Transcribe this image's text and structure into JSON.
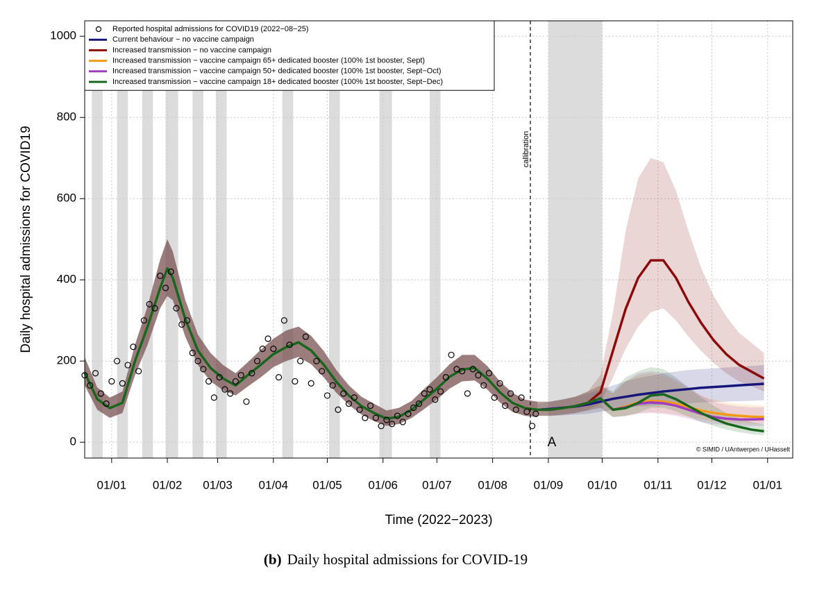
{
  "chart_data": {
    "type": "line",
    "y_label": "Daily hospital admissions for COVID19",
    "x_label": "Time (2022−2023)",
    "caption_label": "(b)",
    "caption": "Daily hospital admissions for COVID-19",
    "annotation": "A",
    "credit": "© SIMID / UAntwerpen / UHasselt",
    "grid": true,
    "legend_position": "top-left",
    "xlim": [
      "2021-12-17",
      "2023-01-15"
    ],
    "xticks": [
      {
        "value": "2022-01-01",
        "label": "01/01"
      },
      {
        "value": "2022-02-01",
        "label": "01/02"
      },
      {
        "value": "2022-03-01",
        "label": "01/03"
      },
      {
        "value": "2022-04-01",
        "label": "01/04"
      },
      {
        "value": "2022-05-01",
        "label": "01/05"
      },
      {
        "value": "2022-06-01",
        "label": "01/06"
      },
      {
        "value": "2022-07-01",
        "label": "01/07"
      },
      {
        "value": "2022-08-01",
        "label": "01/08"
      },
      {
        "value": "2022-09-01",
        "label": "01/09"
      },
      {
        "value": "2022-10-01",
        "label": "01/10"
      },
      {
        "value": "2022-11-01",
        "label": "01/11"
      },
      {
        "value": "2022-12-01",
        "label": "01/12"
      },
      {
        "value": "2023-01-01",
        "label": "01/01"
      }
    ],
    "ylim": [
      -39,
      1038
    ],
    "yticks": [
      0,
      200,
      400,
      600,
      800,
      1000
    ],
    "shade_color": "#dcdcdc",
    "shaded_periods": [
      {
        "start": "2021-12-21",
        "end": "2021-12-27"
      },
      {
        "start": "2022-01-04",
        "end": "2022-01-10"
      },
      {
        "start": "2022-01-18",
        "end": "2022-01-24"
      },
      {
        "start": "2022-01-31",
        "end": "2022-02-07"
      },
      {
        "start": "2022-02-15",
        "end": "2022-02-21"
      },
      {
        "start": "2022-02-28",
        "end": "2022-03-06"
      },
      {
        "start": "2022-04-06",
        "end": "2022-04-12"
      },
      {
        "start": "2022-05-02",
        "end": "2022-05-08"
      },
      {
        "start": "2022-05-30",
        "end": "2022-06-06"
      },
      {
        "start": "2022-06-27",
        "end": "2022-07-03"
      },
      {
        "start": "2022-09-01",
        "end": "2022-10-01"
      }
    ],
    "calibration": {
      "date": "2022-08-22",
      "label": "callibration"
    },
    "observations": {
      "name": "Reported hospital admissions for COVID19 (2022−08−25)",
      "color": "#000000",
      "x": [
        "2021-12-17",
        "2021-12-20",
        "2021-12-23",
        "2021-12-26",
        "2021-12-29",
        "2022-01-01",
        "2022-01-04",
        "2022-01-07",
        "2022-01-10",
        "2022-01-13",
        "2022-01-16",
        "2022-01-19",
        "2022-01-22",
        "2022-01-25",
        "2022-01-28",
        "2022-01-31",
        "2022-02-03",
        "2022-02-06",
        "2022-02-09",
        "2022-02-12",
        "2022-02-15",
        "2022-02-18",
        "2022-02-21",
        "2022-02-24",
        "2022-02-27",
        "2022-03-02",
        "2022-03-05",
        "2022-03-08",
        "2022-03-11",
        "2022-03-14",
        "2022-03-17",
        "2022-03-20",
        "2022-03-23",
        "2022-03-26",
        "2022-03-29",
        "2022-04-01",
        "2022-04-04",
        "2022-04-07",
        "2022-04-10",
        "2022-04-13",
        "2022-04-16",
        "2022-04-19",
        "2022-04-22",
        "2022-04-25",
        "2022-04-28",
        "2022-05-01",
        "2022-05-04",
        "2022-05-07",
        "2022-05-10",
        "2022-05-13",
        "2022-05-16",
        "2022-05-19",
        "2022-05-22",
        "2022-05-25",
        "2022-05-28",
        "2022-05-31",
        "2022-06-03",
        "2022-06-06",
        "2022-06-09",
        "2022-06-12",
        "2022-06-15",
        "2022-06-18",
        "2022-06-21",
        "2022-06-24",
        "2022-06-27",
        "2022-06-30",
        "2022-07-03",
        "2022-07-06",
        "2022-07-09",
        "2022-07-12",
        "2022-07-15",
        "2022-07-18",
        "2022-07-21",
        "2022-07-24",
        "2022-07-27",
        "2022-07-30",
        "2022-08-02",
        "2022-08-05",
        "2022-08-08",
        "2022-08-11",
        "2022-08-14",
        "2022-08-17",
        "2022-08-20",
        "2022-08-23",
        "2022-08-25"
      ],
      "values": [
        165,
        140,
        170,
        120,
        95,
        150,
        200,
        145,
        190,
        235,
        175,
        300,
        340,
        330,
        410,
        380,
        420,
        330,
        290,
        300,
        220,
        200,
        180,
        150,
        110,
        160,
        130,
        120,
        150,
        165,
        100,
        170,
        200,
        230,
        255,
        230,
        160,
        300,
        240,
        150,
        200,
        260,
        145,
        200,
        175,
        115,
        140,
        80,
        120,
        95,
        110,
        80,
        60,
        90,
        60,
        40,
        55,
        45,
        65,
        50,
        70,
        85,
        95,
        120,
        130,
        105,
        125,
        160,
        215,
        180,
        175,
        120,
        180,
        165,
        140,
        170,
        110,
        145,
        90,
        120,
        80,
        110,
        75,
        40,
        70
      ]
    },
    "fit_band": {
      "color": "#7a5252",
      "x": [
        "2021-12-17",
        "2021-12-24",
        "2021-12-31",
        "2022-01-07",
        "2022-01-14",
        "2022-01-21",
        "2022-01-28",
        "2022-02-01",
        "2022-02-04",
        "2022-02-11",
        "2022-02-18",
        "2022-02-25",
        "2022-03-04",
        "2022-03-11",
        "2022-03-18",
        "2022-03-25",
        "2022-04-01",
        "2022-04-08",
        "2022-04-15",
        "2022-04-22",
        "2022-04-29",
        "2022-05-06",
        "2022-05-13",
        "2022-05-20",
        "2022-05-27",
        "2022-06-03",
        "2022-06-10",
        "2022-06-17",
        "2022-06-24",
        "2022-07-01",
        "2022-07-08",
        "2022-07-15",
        "2022-07-22",
        "2022-07-29",
        "2022-08-05",
        "2022-08-12",
        "2022-08-19",
        "2022-08-26"
      ],
      "lower": [
        140,
        80,
        60,
        72,
        165,
        240,
        330,
        360,
        350,
        260,
        190,
        150,
        128,
        115,
        138,
        160,
        185,
        200,
        210,
        192,
        160,
        122,
        92,
        68,
        52,
        40,
        45,
        60,
        82,
        105,
        132,
        150,
        152,
        130,
        98,
        75,
        65,
        62
      ],
      "upper": [
        210,
        135,
        110,
        125,
        240,
        335,
        450,
        500,
        470,
        350,
        265,
        220,
        190,
        170,
        198,
        228,
        255,
        275,
        285,
        262,
        225,
        178,
        140,
        112,
        95,
        78,
        85,
        102,
        132,
        160,
        192,
        215,
        215,
        188,
        150,
        122,
        105,
        100
      ]
    },
    "series": [
      {
        "name": "Current behaviour − no vaccine campaign",
        "color": "#15157a",
        "x": [
          "2022-08-26",
          "2022-09-02",
          "2022-09-09",
          "2022-09-16",
          "2022-09-23",
          "2022-09-30",
          "2022-10-07",
          "2022-10-14",
          "2022-10-21",
          "2022-10-28",
          "2022-11-04",
          "2022-11-11",
          "2022-11-18",
          "2022-11-25",
          "2022-12-02",
          "2022-12-09",
          "2022-12-16",
          "2022-12-23",
          "2022-12-30"
        ],
        "values": [
          80,
          82,
          85,
          88,
          93,
          100,
          107,
          112,
          117,
          121,
          125,
          128,
          131,
          134,
          136,
          138,
          140,
          142,
          144
        ],
        "band": {
          "x": [
            "2022-08-26",
            "2022-09-02",
            "2022-09-09",
            "2022-09-16",
            "2022-09-23",
            "2022-09-30",
            "2022-10-07",
            "2022-10-14",
            "2022-10-21",
            "2022-10-28",
            "2022-11-04",
            "2022-11-11",
            "2022-11-18",
            "2022-11-25",
            "2022-12-02",
            "2022-12-09",
            "2022-12-16",
            "2022-12-23",
            "2022-12-30"
          ],
          "lower": [
            65,
            65,
            66,
            68,
            70,
            75,
            80,
            84,
            88,
            90,
            92,
            94,
            96,
            98,
            99,
            100,
            101,
            102,
            103
          ],
          "upper": [
            95,
            100,
            106,
            112,
            120,
            130,
            140,
            150,
            158,
            164,
            170,
            174,
            178,
            180,
            182,
            184,
            186,
            188,
            190
          ]
        }
      },
      {
        "name": "Increased transmission − no vaccine campaign",
        "color": "#8b0a0a",
        "x": [
          "2022-08-26",
          "2022-09-02",
          "2022-09-09",
          "2022-09-16",
          "2022-09-23",
          "2022-09-30",
          "2022-10-07",
          "2022-10-14",
          "2022-10-21",
          "2022-10-28",
          "2022-11-04",
          "2022-11-11",
          "2022-11-18",
          "2022-11-25",
          "2022-12-02",
          "2022-12-09",
          "2022-12-16",
          "2022-12-23",
          "2022-12-30"
        ],
        "values": [
          80,
          80,
          84,
          89,
          97,
          123,
          226,
          328,
          405,
          448,
          448,
          405,
          345,
          294,
          251,
          217,
          191,
          174,
          157
        ],
        "band": {
          "x": [
            "2022-08-26",
            "2022-09-02",
            "2022-09-09",
            "2022-09-16",
            "2022-09-23",
            "2022-09-30",
            "2022-10-07",
            "2022-10-14",
            "2022-10-21",
            "2022-10-28",
            "2022-11-04",
            "2022-11-11",
            "2022-11-18",
            "2022-11-25",
            "2022-12-02",
            "2022-12-09",
            "2022-12-16",
            "2022-12-23",
            "2022-12-30"
          ],
          "lower": [
            65,
            65,
            68,
            72,
            80,
            95,
            160,
            230,
            285,
            320,
            330,
            300,
            260,
            225,
            195,
            170,
            150,
            138,
            125
          ],
          "upper": [
            100,
            100,
            105,
            112,
            125,
            165,
            320,
            520,
            650,
            700,
            690,
            620,
            520,
            430,
            360,
            310,
            270,
            245,
            220
          ]
        }
      },
      {
        "name": "Increased transmission − vaccine campaign 65+ dedicated booster (100% 1st booster, Sept)",
        "color": "#f29a17",
        "x": [
          "2022-08-26",
          "2022-09-02",
          "2022-09-09",
          "2022-09-16",
          "2022-09-23",
          "2022-09-30",
          "2022-10-07",
          "2022-10-14",
          "2022-10-21",
          "2022-10-28",
          "2022-11-04",
          "2022-11-11",
          "2022-11-18",
          "2022-11-25",
          "2022-12-02",
          "2022-12-09",
          "2022-12-16",
          "2022-12-23",
          "2022-12-30"
        ],
        "values": [
          80,
          80,
          84,
          89,
          97,
          108,
          80,
          88,
          98,
          102,
          100,
          95,
          86,
          78,
          72,
          68,
          65,
          63,
          62
        ],
        "band": {
          "x": [
            "2022-08-26",
            "2022-09-02",
            "2022-09-09",
            "2022-09-16",
            "2022-09-23",
            "2022-09-30",
            "2022-10-07",
            "2022-10-14",
            "2022-10-21",
            "2022-10-28",
            "2022-11-04",
            "2022-11-11",
            "2022-11-18",
            "2022-11-25",
            "2022-12-02",
            "2022-12-09",
            "2022-12-16",
            "2022-12-23",
            "2022-12-30"
          ],
          "lower": [
            65,
            65,
            68,
            72,
            78,
            85,
            62,
            66,
            72,
            74,
            72,
            68,
            62,
            56,
            52,
            49,
            47,
            46,
            45
          ],
          "upper": [
            100,
            100,
            105,
            112,
            125,
            140,
            120,
            150,
            165,
            170,
            165,
            150,
            130,
            115,
            105,
            98,
            94,
            92,
            90
          ]
        }
      },
      {
        "name": "Increased transmission − vaccine campaign 50+ dedicated booster (100% 1st booster, Sept−Oct)",
        "color": "#a03cc0",
        "x": [
          "2022-08-26",
          "2022-09-02",
          "2022-09-09",
          "2022-09-16",
          "2022-09-23",
          "2022-09-30",
          "2022-10-07",
          "2022-10-14",
          "2022-10-21",
          "2022-10-28",
          "2022-11-04",
          "2022-11-11",
          "2022-11-18",
          "2022-11-25",
          "2022-12-02",
          "2022-12-09",
          "2022-12-16",
          "2022-12-23",
          "2022-12-30"
        ],
        "values": [
          80,
          80,
          84,
          89,
          97,
          108,
          80,
          86,
          95,
          98,
          96,
          90,
          80,
          70,
          62,
          58,
          56,
          56,
          57
        ],
        "band": {
          "x": [
            "2022-08-26",
            "2022-09-02",
            "2022-09-09",
            "2022-09-16",
            "2022-09-23",
            "2022-09-30",
            "2022-10-07",
            "2022-10-14",
            "2022-10-21",
            "2022-10-28",
            "2022-11-04",
            "2022-11-11",
            "2022-11-18",
            "2022-11-25",
            "2022-12-02",
            "2022-12-09",
            "2022-12-16",
            "2022-12-23",
            "2022-12-30"
          ],
          "lower": [
            65,
            65,
            68,
            72,
            78,
            85,
            62,
            65,
            70,
            72,
            70,
            65,
            58,
            50,
            45,
            42,
            40,
            40,
            40
          ],
          "upper": [
            100,
            100,
            105,
            112,
            125,
            140,
            120,
            150,
            170,
            175,
            170,
            155,
            135,
            115,
            100,
            92,
            88,
            86,
            86
          ]
        }
      },
      {
        "name": "Increased transmission − vaccine campaign 18+ dedicated booster (100% 1st booster, Sept−Dec)",
        "color": "#17661c",
        "x": [
          "2021-12-17",
          "2021-12-24",
          "2021-12-31",
          "2022-01-07",
          "2022-01-14",
          "2022-01-21",
          "2022-01-28",
          "2022-02-01",
          "2022-02-04",
          "2022-02-11",
          "2022-02-18",
          "2022-02-25",
          "2022-03-04",
          "2022-03-11",
          "2022-03-18",
          "2022-03-25",
          "2022-04-01",
          "2022-04-08",
          "2022-04-15",
          "2022-04-22",
          "2022-04-29",
          "2022-05-06",
          "2022-05-13",
          "2022-05-20",
          "2022-05-27",
          "2022-06-03",
          "2022-06-10",
          "2022-06-17",
          "2022-06-24",
          "2022-07-01",
          "2022-07-08",
          "2022-07-15",
          "2022-07-22",
          "2022-07-29",
          "2022-08-05",
          "2022-08-12",
          "2022-08-19",
          "2022-08-26",
          "2022-09-02",
          "2022-09-09",
          "2022-09-16",
          "2022-09-23",
          "2022-09-30",
          "2022-10-07",
          "2022-10-14",
          "2022-10-21",
          "2022-10-28",
          "2022-11-04",
          "2022-11-11",
          "2022-11-18",
          "2022-11-25",
          "2022-12-02",
          "2022-12-09",
          "2022-12-16",
          "2022-12-23",
          "2022-12-30"
        ],
        "values": [
          171,
          106,
          84,
          97,
          200,
          285,
          380,
          428,
          405,
          303,
          226,
          183,
          157,
          140,
          166,
          191,
          217,
          234,
          246,
          226,
          191,
          149,
          115,
          89,
          72,
          58,
          63,
          80,
          106,
          132,
          161,
          179,
          183,
          157,
          123,
          97,
          84,
          80,
          80,
          84,
          89,
          97,
          108,
          80,
          84,
          97,
          115,
          118,
          106,
          89,
          72,
          58,
          46,
          38,
          31,
          27
        ],
        "band": {
          "x": [
            "2022-08-26",
            "2022-09-02",
            "2022-09-09",
            "2022-09-16",
            "2022-09-23",
            "2022-09-30",
            "2022-10-07",
            "2022-10-14",
            "2022-10-21",
            "2022-10-28",
            "2022-11-04",
            "2022-11-11",
            "2022-11-18",
            "2022-11-25",
            "2022-12-02",
            "2022-12-09",
            "2022-12-16",
            "2022-12-23",
            "2022-12-30"
          ],
          "lower": [
            65,
            65,
            68,
            72,
            78,
            85,
            62,
            64,
            72,
            85,
            85,
            76,
            63,
            50,
            40,
            31,
            25,
            20,
            17
          ],
          "upper": [
            100,
            100,
            105,
            112,
            125,
            140,
            125,
            160,
            175,
            185,
            180,
            160,
            135,
            110,
            90,
            72,
            60,
            50,
            44
          ]
        }
      }
    ]
  }
}
